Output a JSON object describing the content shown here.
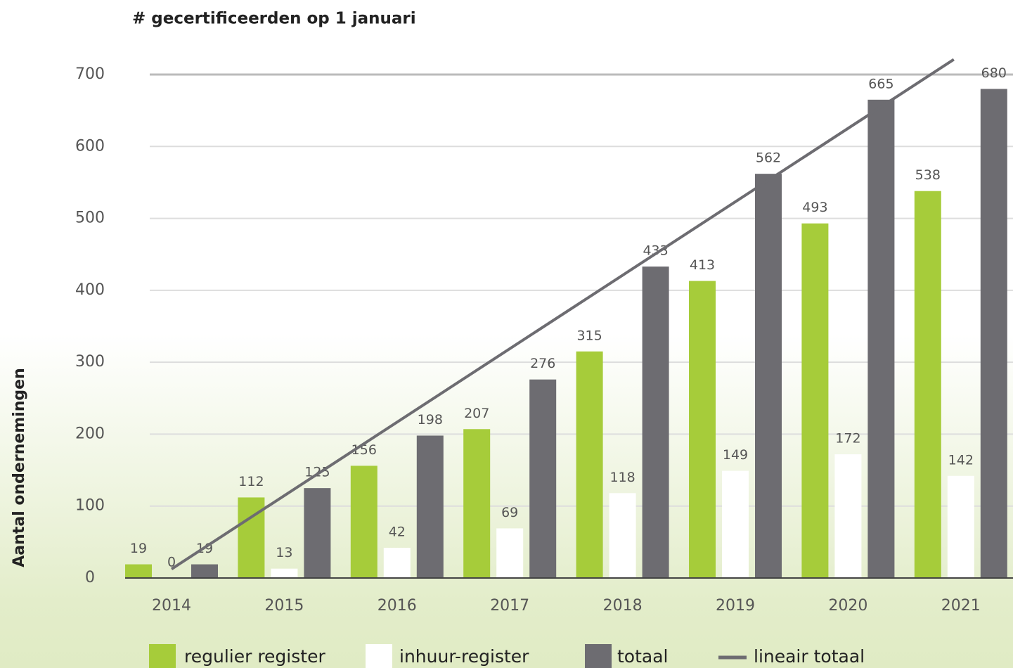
{
  "chart_data": {
    "type": "bar",
    "title": "# gecertificeerden op 1 januari",
    "y_label": "Aantal ondernemingen",
    "categories": [
      "2014",
      "2015",
      "2016",
      "2017",
      "2018",
      "2019",
      "2020",
      "2021"
    ],
    "series": [
      {
        "name": "regulier register",
        "color": "#a6cc3a",
        "values": [
          19,
          112,
          156,
          207,
          315,
          413,
          493,
          538
        ]
      },
      {
        "name": "inhuur-register",
        "color": "#ffffff",
        "values": [
          0,
          13,
          42,
          69,
          118,
          149,
          172,
          142
        ]
      },
      {
        "name": "totaal",
        "color": "#6d6c71",
        "values": [
          19,
          125,
          198,
          276,
          433,
          562,
          665,
          680
        ]
      }
    ],
    "trend": {
      "name": "lineair totaal",
      "color": "#6d6c71",
      "of_series": 2
    },
    "ylim": [
      0,
      700
    ],
    "yticks": [
      0,
      100,
      200,
      300,
      400,
      500,
      600,
      700
    ],
    "grid": true
  }
}
